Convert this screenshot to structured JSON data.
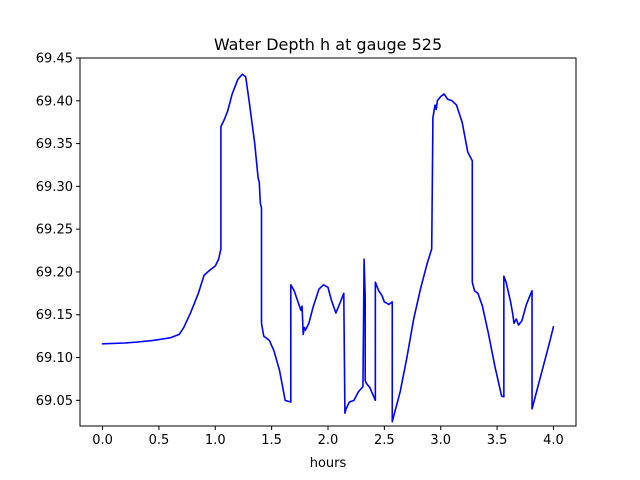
{
  "chart_data": {
    "type": "line",
    "title": "Water Depth h at gauge 525",
    "xlabel": "hours",
    "ylabel": "",
    "xlim": [
      -0.2,
      4.2
    ],
    "ylim": [
      69.02,
      69.45
    ],
    "xticks": [
      0.0,
      0.5,
      1.0,
      1.5,
      2.0,
      2.5,
      3.0,
      3.5,
      4.0
    ],
    "xtick_labels": [
      "0.0",
      "0.5",
      "1.0",
      "1.5",
      "2.0",
      "2.5",
      "3.0",
      "3.5",
      "4.0"
    ],
    "yticks": [
      69.05,
      69.1,
      69.15,
      69.2,
      69.25,
      69.3,
      69.35,
      69.4,
      69.45
    ],
    "ytick_labels": [
      "69.05",
      "69.10",
      "69.15",
      "69.20",
      "69.25",
      "69.30",
      "69.35",
      "69.40",
      "69.45"
    ],
    "grid": false,
    "series": [
      {
        "color": "#0000ff",
        "x": [
          0.0,
          0.2,
          0.3,
          0.45,
          0.6,
          0.68,
          0.72,
          0.78,
          0.85,
          0.9,
          0.95,
          1.0,
          1.03,
          1.05,
          1.05,
          1.08,
          1.11,
          1.15,
          1.2,
          1.24,
          1.27,
          1.3,
          1.35,
          1.38,
          1.39,
          1.4,
          1.41,
          1.41,
          1.43,
          1.48,
          1.52,
          1.57,
          1.62,
          1.67,
          1.67,
          1.7,
          1.76,
          1.77,
          1.78,
          1.79,
          1.8,
          1.83,
          1.87,
          1.92,
          1.96,
          2.0,
          2.03,
          2.07,
          2.11,
          2.14,
          2.15,
          2.16,
          2.19,
          2.23,
          2.27,
          2.31,
          2.32,
          2.32,
          2.33,
          2.33,
          2.34,
          2.37,
          2.42,
          2.42,
          2.45,
          2.48,
          2.5,
          2.54,
          2.57,
          2.57,
          2.58,
          2.64,
          2.7,
          2.76,
          2.82,
          2.88,
          2.92,
          2.93,
          2.93,
          2.95,
          2.96,
          2.97,
          3.0,
          3.03,
          3.06,
          3.1,
          3.14,
          3.19,
          3.24,
          3.28,
          3.28,
          3.3,
          3.33,
          3.37,
          3.42,
          3.48,
          3.54,
          3.56,
          3.56,
          3.58,
          3.62,
          3.64,
          3.65,
          3.67,
          3.69,
          3.72,
          3.76,
          3.8,
          3.81,
          3.81,
          3.86,
          3.92,
          3.97,
          4.0
        ],
        "y": [
          69.116,
          69.117,
          69.118,
          69.12,
          69.123,
          69.127,
          69.135,
          69.152,
          69.175,
          69.196,
          69.202,
          69.207,
          69.215,
          69.227,
          69.37,
          69.378,
          69.388,
          69.408,
          69.425,
          69.431,
          69.428,
          69.4,
          69.35,
          69.31,
          69.305,
          69.28,
          69.275,
          69.14,
          69.125,
          69.12,
          69.108,
          69.085,
          69.05,
          69.048,
          69.185,
          69.178,
          69.155,
          69.16,
          69.127,
          69.135,
          69.132,
          69.14,
          69.16,
          69.18,
          69.185,
          69.182,
          69.167,
          69.152,
          69.165,
          69.175,
          69.035,
          69.04,
          69.048,
          69.05,
          69.06,
          69.066,
          69.212,
          69.215,
          69.17,
          69.073,
          69.07,
          69.065,
          69.05,
          69.188,
          69.178,
          69.172,
          69.165,
          69.162,
          69.165,
          69.025,
          69.03,
          69.06,
          69.1,
          69.145,
          69.18,
          69.21,
          69.227,
          69.37,
          69.38,
          69.395,
          69.39,
          69.4,
          69.405,
          69.408,
          69.402,
          69.4,
          69.395,
          69.375,
          69.34,
          69.33,
          69.188,
          69.178,
          69.175,
          69.16,
          69.13,
          69.09,
          69.055,
          69.054,
          69.195,
          69.188,
          69.165,
          69.15,
          69.14,
          69.145,
          69.138,
          69.143,
          69.162,
          69.175,
          69.178,
          69.04,
          69.065,
          69.095,
          69.12,
          69.136
        ]
      }
    ]
  }
}
